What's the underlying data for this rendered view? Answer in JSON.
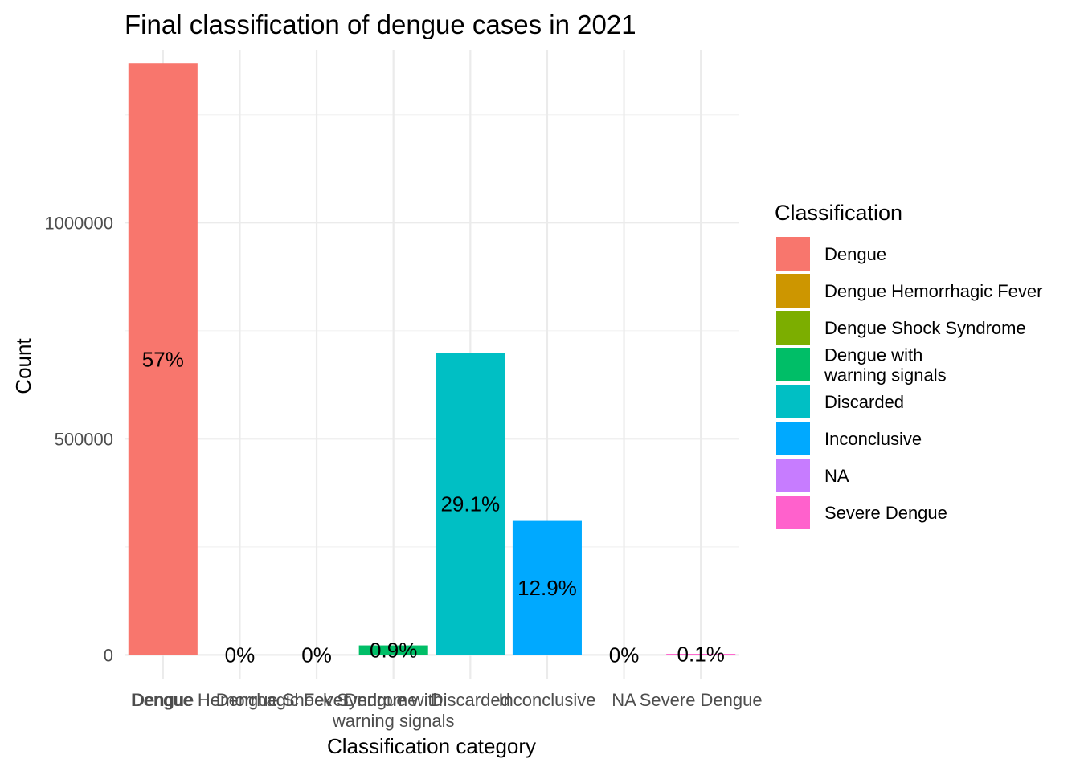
{
  "chart_data": {
    "type": "bar",
    "title": "Final classification of dengue cases in 2021",
    "xlabel": "Classification category",
    "ylabel": "Count",
    "ylim": [
      -55000,
      1400000
    ],
    "yticks": [
      0,
      500000,
      1000000
    ],
    "yticks_minor": [
      250000,
      750000,
      1250000
    ],
    "ytick_labels": [
      "0",
      "500000",
      "1000000"
    ],
    "grid": true,
    "legend_position": "right",
    "legend_title": "Classification",
    "categories": [
      "Dengue",
      "Dengue Hemorrhagic Fever",
      "Dengue Shock Syndrome",
      "Dengue with\nwarning signals",
      "Discarded",
      "Inconclusive",
      "NA",
      "Severe Dengue"
    ],
    "values": [
      1368000,
      0,
      0,
      22000,
      699000,
      310000,
      0,
      2500
    ],
    "data_labels": [
      "57%",
      "0%",
      "0%",
      "0.9%",
      "29.1%",
      "12.9%",
      "0%",
      "0.1%"
    ],
    "colors": [
      "#F8766D",
      "#CD9600",
      "#7CAE00",
      "#00BE67",
      "#00BFC4",
      "#00A9FF",
      "#C77CFF",
      "#FF61CC"
    ]
  }
}
